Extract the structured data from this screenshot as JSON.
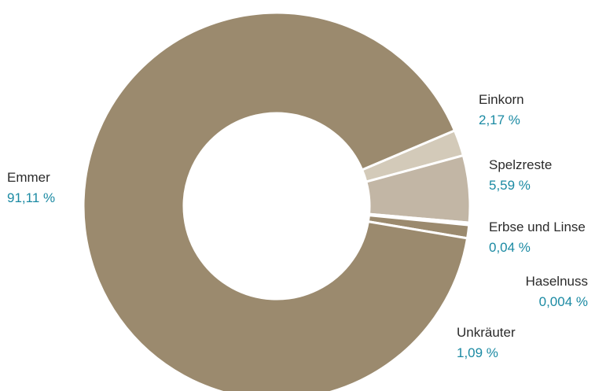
{
  "chart_data": {
    "type": "pie",
    "donut": true,
    "title": "",
    "slices": [
      {
        "name": "Einkorn",
        "value": 2.17,
        "label": "2,17 %",
        "color": "#d3cab9"
      },
      {
        "name": "Spelzreste",
        "value": 5.59,
        "label": "5,59 %",
        "color": "#c2b6a5"
      },
      {
        "name": "Erbse und Linse",
        "value": 0.04,
        "label": "0,04 %",
        "color": "#9b8a6e"
      },
      {
        "name": "Haselnuss",
        "value": 0.004,
        "label": "0,004 %",
        "color": "#9b8a6e"
      },
      {
        "name": "Unkräuter",
        "value": 1.09,
        "label": "1,09 %",
        "color": "#9b8a6e"
      },
      {
        "name": "Emmer",
        "value": 91.11,
        "label": "91,11 %",
        "color": "#9b8a6e"
      }
    ]
  }
}
